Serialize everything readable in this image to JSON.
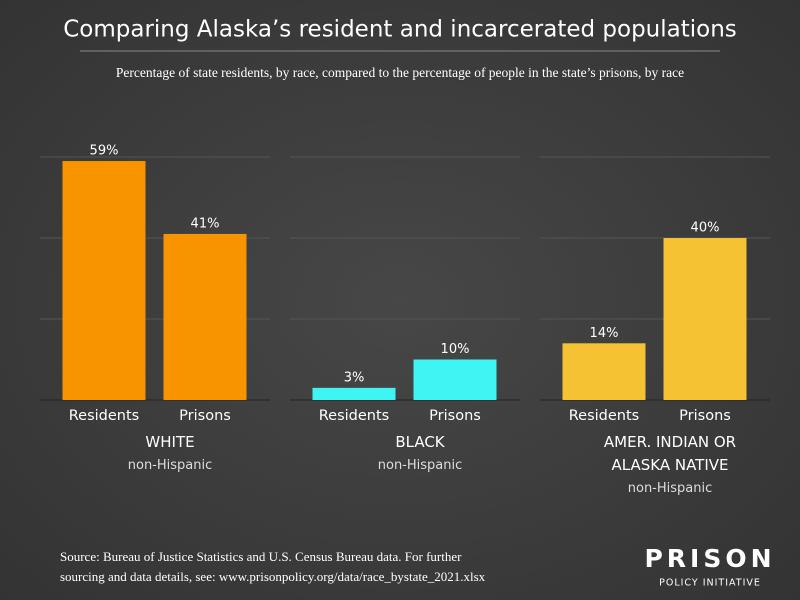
{
  "title": "Comparing Alaska’s resident and incarcerated populations",
  "subtitle": "Percentage of state residents, by race, compared to the percentage of people in the state’s prisons, by race",
  "source": [
    "Source: Bureau of Justice Statistics and U.S. Census Bureau data. For further",
    "sourcing and data details, see: www.prisonpolicy.org/data/race_bystate_2021.xlsx"
  ],
  "logo": {
    "name": "PRISON",
    "tagline": "POLICY INITIATIVE"
  },
  "chart_data": [
    {
      "type": "bar",
      "categories": [
        "Residents",
        "Prisons"
      ],
      "values": [
        59,
        41
      ],
      "value_labels": [
        "59%",
        "41%"
      ],
      "color": "#f79400",
      "group_label": "WHITE",
      "group_sublabel": "non-Hispanic",
      "ylim": [
        0,
        60
      ],
      "yticks": [
        0,
        20,
        40,
        60
      ],
      "grid": true
    },
    {
      "type": "bar",
      "categories": [
        "Residents",
        "Prisons"
      ],
      "values": [
        3,
        10
      ],
      "value_labels": [
        "3%",
        "10%"
      ],
      "color": "#40f4f4",
      "group_label": "BLACK",
      "group_sublabel": "non-Hispanic",
      "ylim": [
        0,
        60
      ],
      "yticks": [
        0,
        20,
        40,
        60
      ],
      "grid": true
    },
    {
      "type": "bar",
      "categories": [
        "Residents",
        "Prisons"
      ],
      "values": [
        14,
        40
      ],
      "value_labels": [
        "14%",
        "40%"
      ],
      "color": "#f4c232",
      "group_label": "AMER. INDIAN OR ALASKA NATIVE",
      "group_sublabel": "non-Hispanic",
      "ylim": [
        0,
        60
      ],
      "yticks": [
        0,
        20,
        40,
        60
      ],
      "grid": true
    }
  ]
}
